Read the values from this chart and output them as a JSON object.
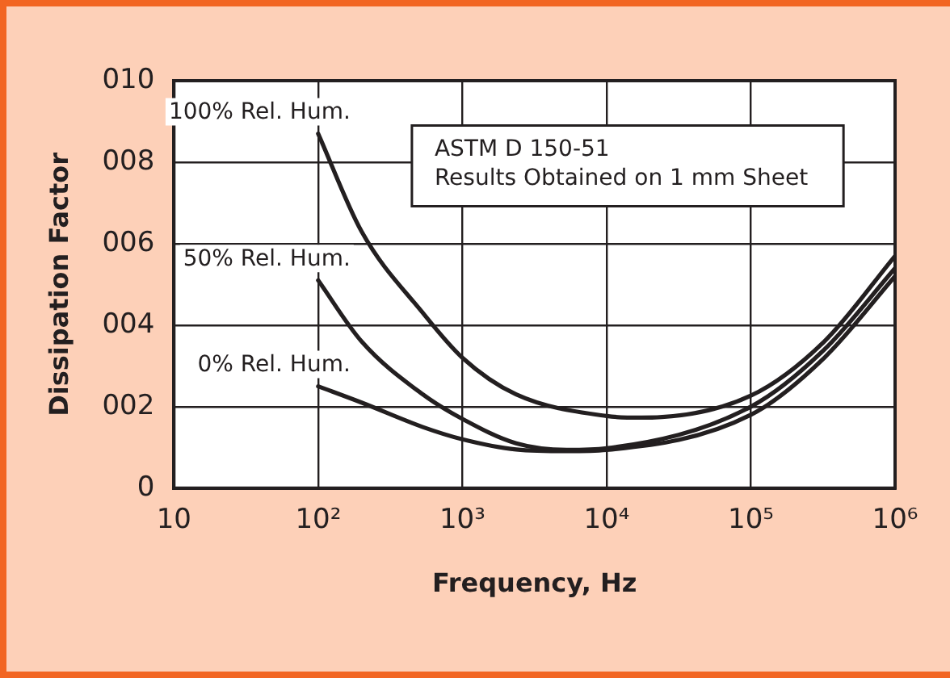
{
  "chart_data": {
    "type": "line",
    "xlabel": "Frequency, Hz",
    "ylabel": "Dissipation Factor",
    "log": "x",
    "xlim": [
      10,
      1000000
    ],
    "xticks": [
      10,
      {
        "value": 100,
        "label": "10²"
      },
      {
        "value": 1000,
        "label": "10³"
      },
      {
        "value": 10000,
        "label": "10⁴"
      },
      {
        "value": 100000,
        "label": "10⁵"
      },
      {
        "value": 1000000,
        "label": "10⁶"
      }
    ],
    "ylim": [
      0,
      10
    ],
    "yticks": [
      0,
      {
        "value": 2,
        "label": "002"
      },
      {
        "value": 4,
        "label": "004"
      },
      {
        "value": 6,
        "label": "006"
      },
      {
        "value": 8,
        "label": "008"
      },
      {
        "value": 10,
        "label": "010"
      }
    ],
    "grid": true,
    "legend": false,
    "marker": "none",
    "line_style": "solid",
    "annotations": [
      "ASTM D 150-51",
      "Results Obtained on 1 mm Sheet"
    ],
    "series": [
      {
        "name": "100% Rel. Hum.",
        "color": "#231f20",
        "x": [
          100,
          200,
          532,
          1000,
          2360,
          10000,
          17500,
          100000,
          323000,
          1000000
        ],
        "values": [
          8.7,
          6.3,
          4.3,
          3.2,
          2.3,
          1.77,
          1.73,
          2.27,
          3.6,
          5.7
        ]
      },
      {
        "name": "50% Rel. Hum.",
        "color": "#231f20",
        "x": [
          100,
          200,
          532,
          1000,
          2360,
          5300,
          10000,
          100000,
          323000,
          1000000
        ],
        "values": [
          5.1,
          3.6,
          2.3,
          1.7,
          1.1,
          0.94,
          0.98,
          2,
          3.4,
          5.4
        ]
      },
      {
        "name": "0% Rel. Hum.",
        "color": "#231f20",
        "x": [
          100,
          200,
          532,
          1000,
          2360,
          5300,
          10000,
          100000,
          323000,
          1000000
        ],
        "values": [
          2.5,
          2.1,
          1.5,
          1.2,
          0.95,
          0.91,
          0.94,
          1.8,
          3.2,
          5.2
        ]
      }
    ]
  }
}
